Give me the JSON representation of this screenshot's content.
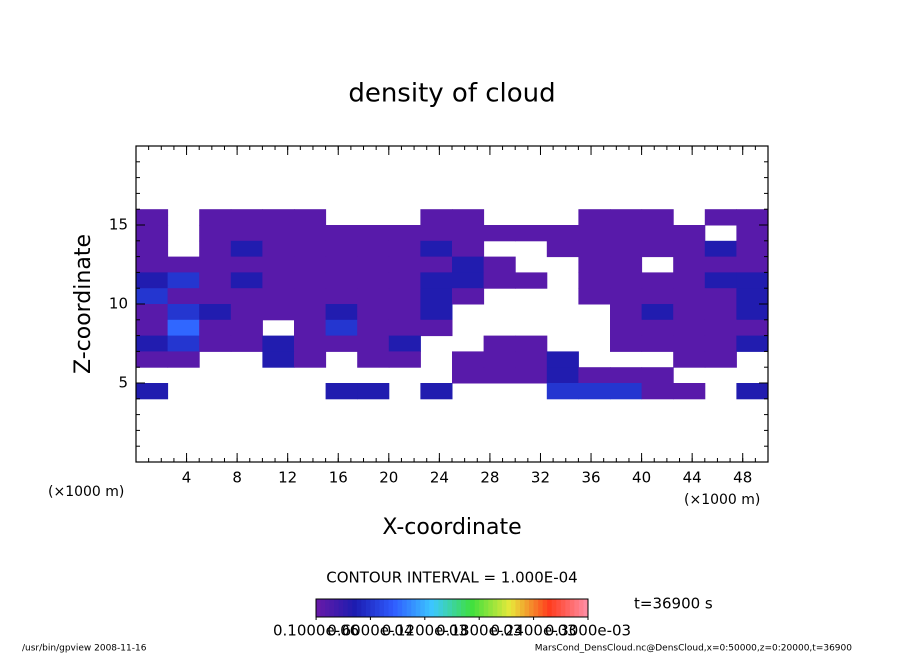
{
  "chart_data": {
    "type": "contour",
    "title": "density of cloud",
    "xlabel": "X-coordinate",
    "ylabel": "Z-coordinate",
    "unit_labels": [
      "(×1000 m)",
      "(×1000 m)"
    ],
    "contour_interval": "CONTOUR INTERVAL = 1.000E-04",
    "time_label": "t=36900 s",
    "footer_left": "/usr/bin/gpview   2008-11-16",
    "footer_right": "MarsCond_DensCloud.nc@DensCloud,x=0:50000,z=0:20000,t=36900",
    "xlim": [
      0,
      50
    ],
    "ylim": [
      0,
      20
    ],
    "xticks": [
      4,
      8,
      12,
      16,
      20,
      24,
      28,
      32,
      36,
      40,
      44,
      48
    ],
    "yticks": [
      5,
      10,
      15
    ],
    "x": [
      1.25,
      3.75,
      6.25,
      8.75,
      11.25,
      13.75,
      16.25,
      18.75,
      21.25,
      23.75,
      26.25,
      28.75,
      31.25,
      33.75,
      36.25,
      38.75,
      41.25,
      43.75,
      46.25,
      48.75
    ],
    "y": [
      15.5,
      14.5,
      13.5,
      12.5,
      11.5,
      10.5,
      9.5,
      8.5,
      7.5,
      6.5,
      5.5,
      4.5
    ],
    "z": [
      [
        1e-05,
        null,
        1e-05,
        1e-05,
        1e-05,
        1e-05,
        null,
        null,
        null,
        1e-05,
        1e-05,
        null,
        null,
        null,
        1e-05,
        1e-05,
        1e-05,
        null,
        1e-05,
        1e-05
      ],
      [
        1e-05,
        null,
        1e-05,
        1e-05,
        1e-05,
        1e-05,
        1e-05,
        1e-05,
        1e-05,
        1e-05,
        1e-05,
        1e-05,
        1e-05,
        1e-05,
        1e-05,
        1e-05,
        1e-05,
        1e-05,
        null,
        1e-05
      ],
      [
        1e-05,
        null,
        1e-05,
        4e-05,
        1e-05,
        1e-05,
        1e-05,
        1e-05,
        1e-05,
        4e-05,
        1e-05,
        null,
        null,
        1e-05,
        1e-05,
        1e-05,
        1e-05,
        1e-05,
        4e-05,
        1e-05
      ],
      [
        1e-05,
        1e-05,
        1e-05,
        1e-05,
        1e-05,
        1e-05,
        1e-05,
        1e-05,
        1e-05,
        1e-05,
        4e-05,
        1e-05,
        null,
        null,
        1e-05,
        1e-05,
        null,
        1e-05,
        1e-05,
        1e-05
      ],
      [
        4e-05,
        6e-05,
        1e-05,
        4e-05,
        1e-05,
        1e-05,
        1e-05,
        1e-05,
        1e-05,
        4e-05,
        4e-05,
        1e-05,
        1e-05,
        null,
        1e-05,
        1e-05,
        1e-05,
        1e-05,
        4e-05,
        4e-05
      ],
      [
        6e-05,
        1e-05,
        1e-05,
        1e-05,
        1e-05,
        1e-05,
        1e-05,
        1e-05,
        1e-05,
        4e-05,
        1e-05,
        null,
        null,
        null,
        1e-05,
        1e-05,
        1e-05,
        1e-05,
        1e-05,
        4e-05
      ],
      [
        1e-05,
        6e-05,
        4e-05,
        1e-05,
        1e-05,
        1e-05,
        4e-05,
        1e-05,
        1e-05,
        4e-05,
        null,
        null,
        null,
        null,
        null,
        1e-05,
        4e-05,
        1e-05,
        1e-05,
        4e-05
      ],
      [
        1e-05,
        9e-05,
        1e-05,
        1e-05,
        null,
        1e-05,
        6e-05,
        1e-05,
        1e-05,
        1e-05,
        null,
        null,
        null,
        null,
        null,
        1e-05,
        1e-05,
        1e-05,
        1e-05,
        1e-05
      ],
      [
        4e-05,
        6e-05,
        1e-05,
        1e-05,
        4e-05,
        1e-05,
        1e-05,
        1e-05,
        4e-05,
        null,
        null,
        1e-05,
        1e-05,
        null,
        null,
        1e-05,
        1e-05,
        1e-05,
        1e-05,
        4e-05
      ],
      [
        1e-05,
        1e-05,
        null,
        null,
        4e-05,
        1e-05,
        null,
        1e-05,
        1e-05,
        null,
        1e-05,
        1e-05,
        1e-05,
        4e-05,
        null,
        null,
        null,
        1e-05,
        1e-05,
        null
      ],
      [
        null,
        null,
        null,
        null,
        null,
        null,
        null,
        null,
        null,
        null,
        1e-05,
        1e-05,
        1e-05,
        4e-05,
        1e-05,
        1e-05,
        1e-05,
        null,
        null,
        null
      ],
      [
        4e-05,
        null,
        null,
        null,
        null,
        null,
        4e-05,
        4e-05,
        null,
        4e-05,
        null,
        null,
        null,
        6e-05,
        6e-05,
        6e-05,
        1e-05,
        1e-05,
        null,
        4e-05
      ]
    ],
    "clim": [
      0,
      0.0003
    ],
    "colormap": [
      "#6a1aa8",
      "#1c1cb0",
      "#2f5cff",
      "#3cc8ff",
      "#3ee03e",
      "#e8e83a",
      "#ff3c1e",
      "#ff90a8"
    ],
    "colorbar_ticks": [
      {
        "value": 1e-07,
        "label": "0.1000e-06"
      },
      {
        "value": 6e-05,
        "label": "0.6000e-04"
      },
      {
        "value": 0.00012,
        "label": "0.1200e-03"
      },
      {
        "value": 0.00018,
        "label": "0.1800e-03"
      },
      {
        "value": 0.00024,
        "label": "0.2400e-03"
      },
      {
        "value": 0.0003,
        "label": "0.3000e-03"
      }
    ]
  }
}
